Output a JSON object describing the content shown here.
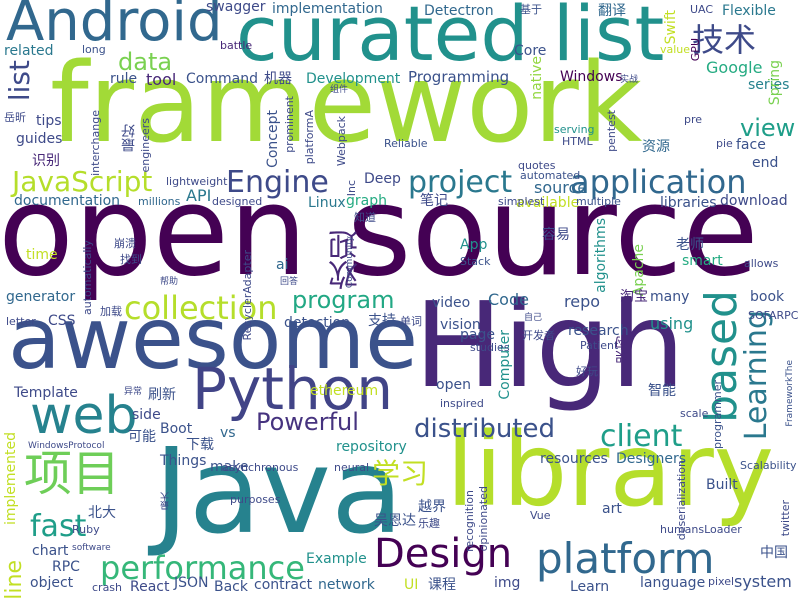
{
  "words": [
    {
      "text": "open source",
      "color": "#440154",
      "vertical": false
    },
    {
      "text": "framework",
      "color": "#a2da37",
      "vertical": false
    },
    {
      "text": "curated list",
      "color": "#21918c",
      "vertical": false
    },
    {
      "text": "Android",
      "color": "#31688e",
      "vertical": false
    },
    {
      "text": "awesome",
      "color": "#3b528b",
      "vertical": false
    },
    {
      "text": "High",
      "color": "#482878",
      "vertical": false
    },
    {
      "text": "Java",
      "color": "#26828e",
      "vertical": false
    },
    {
      "text": "library",
      "color": "#b5de2b",
      "vertical": false
    },
    {
      "text": "Python",
      "color": "#414487",
      "vertical": false
    },
    {
      "text": "web",
      "color": "#26828e",
      "vertical": false
    },
    {
      "text": "Design",
      "color": "#440154",
      "vertical": false
    },
    {
      "text": "platform",
      "color": "#31688e",
      "vertical": false
    },
    {
      "text": "performance",
      "color": "#35b779",
      "vertical": false
    },
    {
      "text": "项目",
      "color": "#6ece58",
      "vertical": false
    },
    {
      "text": "based",
      "color": "#21918c",
      "vertical": true
    },
    {
      "text": "application",
      "color": "#31688e",
      "vertical": false
    },
    {
      "text": "project",
      "color": "#2a788e",
      "vertical": false
    },
    {
      "text": "JavaScript",
      "color": "#b5de2b",
      "vertical": false
    },
    {
      "text": "Engine",
      "color": "#3e4a89",
      "vertical": false
    },
    {
      "text": "collection",
      "color": "#b5de2b",
      "vertical": false
    },
    {
      "text": "program",
      "color": "#22a884",
      "vertical": false
    },
    {
      "text": "client",
      "color": "#1f9e89",
      "vertical": false
    },
    {
      "text": "distributed",
      "color": "#3b528b",
      "vertical": false
    },
    {
      "text": "Powerful",
      "color": "#46337f",
      "vertical": false
    },
    {
      "text": "Learning",
      "color": "#2a788e",
      "vertical": true
    },
    {
      "text": "学习",
      "color": "#c2df23",
      "vertical": false
    },
    {
      "text": "fast",
      "color": "#1f9e89",
      "vertical": false
    },
    {
      "text": "技术",
      "color": "#3e4a89",
      "vertical": false
    },
    {
      "text": "欢迎",
      "color": "#482878",
      "vertical": true
    },
    {
      "text": "view",
      "color": "#1f9e89",
      "vertical": false
    },
    {
      "text": "data",
      "color": "#7ad151",
      "vertical": false
    },
    {
      "text": "list",
      "color": "#3e4a89",
      "vertical": true
    },
    {
      "text": "source",
      "color": "#31688e",
      "vertical": false
    },
    {
      "text": "Deep",
      "color": "#3e4a89",
      "vertical": false
    },
    {
      "text": "Programming",
      "color": "#3b528b",
      "vertical": false
    },
    {
      "text": "Command",
      "color": "#3b528b",
      "vertical": false
    },
    {
      "text": "机器",
      "color": "#3e4a89",
      "vertical": false
    },
    {
      "text": "Development",
      "color": "#21918c",
      "vertical": false
    },
    {
      "text": "Windows",
      "color": "#440154",
      "vertical": false
    },
    {
      "text": "Google",
      "color": "#25ab82",
      "vertical": false
    },
    {
      "text": "series",
      "color": "#26828e",
      "vertical": false
    },
    {
      "text": "Spring",
      "color": "#7ad151",
      "vertical": true
    },
    {
      "text": "tool",
      "color": "#482878",
      "vertical": false
    },
    {
      "text": "rule",
      "color": "#3b528b",
      "vertical": false
    },
    {
      "text": "Core",
      "color": "#3b528b",
      "vertical": false
    },
    {
      "text": "native",
      "color": "#93d741",
      "vertical": true
    },
    {
      "text": "Swift",
      "color": "#c2df23",
      "vertical": true
    },
    {
      "text": "Flexible",
      "color": "#2a788e",
      "vertical": false
    },
    {
      "text": "翻译",
      "color": "#31688e",
      "vertical": false
    },
    {
      "text": "UAC",
      "color": "#3e4a89",
      "vertical": false
    },
    {
      "text": "GPU",
      "color": "#440154",
      "vertical": true
    },
    {
      "text": "Detectron",
      "color": "#31688e",
      "vertical": false
    },
    {
      "text": "基于",
      "color": "#3b528b",
      "vertical": false
    },
    {
      "text": "implementation",
      "color": "#31688e",
      "vertical": false
    },
    {
      "text": "swagger",
      "color": "#3e4a89",
      "vertical": false
    },
    {
      "text": "battle",
      "color": "#482878",
      "vertical": false
    },
    {
      "text": "related",
      "color": "#2a788e",
      "vertical": false
    },
    {
      "text": "long",
      "color": "#3b528b",
      "vertical": false
    },
    {
      "text": "tips",
      "color": "#3e4a89",
      "vertical": false
    },
    {
      "text": "guides",
      "color": "#3e4a89",
      "vertical": false
    },
    {
      "text": "识别",
      "color": "#482878",
      "vertical": false
    },
    {
      "text": "最好",
      "color": "#3e4a89",
      "vertical": true
    },
    {
      "text": "documentation",
      "color": "#31688e",
      "vertical": false
    },
    {
      "text": "millions",
      "color": "#31688e",
      "vertical": false
    },
    {
      "text": "API",
      "color": "#2a788e",
      "vertical": false
    },
    {
      "text": "Linux",
      "color": "#2a788e",
      "vertical": false
    },
    {
      "text": "graph",
      "color": "#25ab82",
      "vertical": false
    },
    {
      "text": "available",
      "color": "#c2df23",
      "vertical": false
    },
    {
      "text": "multiple",
      "color": "#3b528b",
      "vertical": false
    },
    {
      "text": "libraries",
      "color": "#3b528b",
      "vertical": false
    },
    {
      "text": "download",
      "color": "#3e4a89",
      "vertical": false
    },
    {
      "text": "end",
      "color": "#3b528b",
      "vertical": false
    },
    {
      "text": "face",
      "color": "#3b528b",
      "vertical": false
    },
    {
      "text": "pie",
      "color": "#3e4a89",
      "vertical": false
    },
    {
      "text": "资源",
      "color": "#31688e",
      "vertical": false
    },
    {
      "text": "HTML",
      "color": "#3e4a89",
      "vertical": false
    },
    {
      "text": "serving",
      "color": "#21918c",
      "vertical": false
    },
    {
      "text": "quotes",
      "color": "#3e4a89",
      "vertical": false
    },
    {
      "text": "automated",
      "color": "#3b528b",
      "vertical": false
    },
    {
      "text": "simplest",
      "color": "#3e4a89",
      "vertical": false
    },
    {
      "text": "Reliable",
      "color": "#3b528b",
      "vertical": false
    },
    {
      "text": "笔记",
      "color": "#3e4a89",
      "vertical": false
    },
    {
      "text": "知道",
      "color": "#3e4a89",
      "vertical": false
    },
    {
      "text": "容易",
      "color": "#3e4a89",
      "vertical": false
    },
    {
      "text": "algorithms",
      "color": "#21918c",
      "vertical": true
    },
    {
      "text": "Apache",
      "color": "#7ad151",
      "vertical": true
    },
    {
      "text": "smart",
      "color": "#25ab82",
      "vertical": false
    },
    {
      "text": "allows",
      "color": "#3e4a89",
      "vertical": false
    },
    {
      "text": "老师",
      "color": "#3b528b",
      "vertical": false
    },
    {
      "text": "淘宝",
      "color": "#482878",
      "vertical": false
    },
    {
      "text": "many",
      "color": "#3b528b",
      "vertical": false
    },
    {
      "text": "book",
      "color": "#3b528b",
      "vertical": false
    },
    {
      "text": "SOFARPC",
      "color": "#3e4a89",
      "vertical": false
    },
    {
      "text": "App",
      "color": "#21918c",
      "vertical": false
    },
    {
      "text": "Stack",
      "color": "#3b528b",
      "vertical": false
    },
    {
      "text": "Code",
      "color": "#31688e",
      "vertical": false
    },
    {
      "text": "repo",
      "color": "#3b528b",
      "vertical": false
    },
    {
      "text": "video",
      "color": "#3b528b",
      "vertical": false
    },
    {
      "text": "vision",
      "color": "#3b528b",
      "vertical": false
    },
    {
      "text": "page",
      "color": "#3b528b",
      "vertical": false
    },
    {
      "text": "using",
      "color": "#21918c",
      "vertical": false
    },
    {
      "text": "research",
      "color": "#3b528b",
      "vertical": false
    },
    {
      "text": "开发者",
      "color": "#3e4a89",
      "vertical": false
    },
    {
      "text": "Patient",
      "color": "#3e4a89",
      "vertical": false
    },
    {
      "text": "架构",
      "color": "#482878",
      "vertical": true
    },
    {
      "text": "好玩",
      "color": "#3e4a89",
      "vertical": false
    },
    {
      "text": "智能",
      "color": "#3b528b",
      "vertical": false
    },
    {
      "text": "programmer",
      "color": "#3b528b",
      "vertical": true
    },
    {
      "text": "Scalability",
      "color": "#3b528b",
      "vertical": false
    },
    {
      "text": "scale",
      "color": "#3e4a89",
      "vertical": false
    },
    {
      "text": "FrameworkThe",
      "color": "#3b528b",
      "vertical": true
    },
    {
      "text": "detection",
      "color": "#3b528b",
      "vertical": false
    },
    {
      "text": "支持",
      "color": "#3b528b",
      "vertical": false
    },
    {
      "text": "单词",
      "color": "#3e4a89",
      "vertical": false
    },
    {
      "text": "generator",
      "color": "#31688e",
      "vertical": false
    },
    {
      "text": "letter",
      "color": "#3e4a89",
      "vertical": false
    },
    {
      "text": "CSS",
      "color": "#3e4a89",
      "vertical": false
    },
    {
      "text": "Template",
      "color": "#3e4a89",
      "vertical": false
    },
    {
      "text": "time",
      "color": "#c2df23",
      "vertical": false
    },
    {
      "text": "崩溃",
      "color": "#3e4a89",
      "vertical": false
    },
    {
      "text": "找到",
      "color": "#3e4a89",
      "vertical": false
    },
    {
      "text": "ai",
      "color": "#31688e",
      "vertical": false
    },
    {
      "text": "帮助",
      "color": "#3e4a89",
      "vertical": false
    },
    {
      "text": "回答",
      "color": "#3e4a89",
      "vertical": false
    },
    {
      "text": "加载",
      "color": "#3e4a89",
      "vertical": false
    },
    {
      "text": "刷新",
      "color": "#3b528b",
      "vertical": false
    },
    {
      "text": "异常",
      "color": "#3e4a89",
      "vertical": false
    },
    {
      "text": "side",
      "color": "#3e4a89",
      "vertical": false
    },
    {
      "text": "可能",
      "color": "#3b528b",
      "vertical": false
    },
    {
      "text": "Boot",
      "color": "#3b528b",
      "vertical": false
    },
    {
      "text": "vs",
      "color": "#31688e",
      "vertical": false
    },
    {
      "text": "下载",
      "color": "#3b528b",
      "vertical": false
    },
    {
      "text": "Things",
      "color": "#3b528b",
      "vertical": false
    },
    {
      "text": "make",
      "color": "#3b528b",
      "vertical": false
    },
    {
      "text": "asynchronous",
      "color": "#3e4a89",
      "vertical": false
    },
    {
      "text": "ethereum",
      "color": "#c2df23",
      "vertical": false
    },
    {
      "text": "repository",
      "color": "#21918c",
      "vertical": false
    },
    {
      "text": "neural",
      "color": "#3e4a89",
      "vertical": false
    },
    {
      "text": "open",
      "color": "#3b528b",
      "vertical": false
    },
    {
      "text": "inspired",
      "color": "#3e4a89",
      "vertical": false
    },
    {
      "text": "resources",
      "color": "#3b528b",
      "vertical": false
    },
    {
      "text": "Designers",
      "color": "#31688e",
      "vertical": false
    },
    {
      "text": "Built",
      "color": "#3b528b",
      "vertical": false
    },
    {
      "text": "art",
      "color": "#3b528b",
      "vertical": false
    },
    {
      "text": "Vue",
      "color": "#3e4a89",
      "vertical": false
    },
    {
      "text": "humansLoader",
      "color": "#3e4a89",
      "vertical": false
    },
    {
      "text": "中国",
      "color": "#3b528b",
      "vertical": false
    },
    {
      "text": "twitter",
      "color": "#3e4a89",
      "vertical": false
    },
    {
      "text": "language",
      "color": "#3b528b",
      "vertical": false
    },
    {
      "text": "pixel",
      "color": "#3e4a89",
      "vertical": false
    },
    {
      "text": "system",
      "color": "#3b528b",
      "vertical": false
    },
    {
      "text": "Learn",
      "color": "#3b528b",
      "vertical": false
    },
    {
      "text": "img",
      "color": "#3e4a89",
      "vertical": false
    },
    {
      "text": "课程",
      "color": "#3b528b",
      "vertical": false
    },
    {
      "text": "UI",
      "color": "#c2df23",
      "vertical": false
    },
    {
      "text": "network",
      "color": "#31688e",
      "vertical": false
    },
    {
      "text": "contract",
      "color": "#3b528b",
      "vertical": false
    },
    {
      "text": "Back",
      "color": "#3b528b",
      "vertical": false
    },
    {
      "text": "JSON",
      "color": "#3b528b",
      "vertical": false
    },
    {
      "text": "React",
      "color": "#3e4a89",
      "vertical": false
    },
    {
      "text": "crash",
      "color": "#3e4a89",
      "vertical": false
    },
    {
      "text": "object",
      "color": "#3b528b",
      "vertical": false
    },
    {
      "text": "RPC",
      "color": "#3b528b",
      "vertical": false
    },
    {
      "text": "chart",
      "color": "#3b528b",
      "vertical": false
    },
    {
      "text": "software",
      "color": "#3e4a89",
      "vertical": false
    },
    {
      "text": "Ruby",
      "color": "#3e4a89",
      "vertical": false
    },
    {
      "text": "北大",
      "color": "#3b528b",
      "vertical": false
    },
    {
      "text": "line",
      "color": "#c2df23",
      "vertical": true
    },
    {
      "text": "implemented",
      "color": "#c2df23",
      "vertical": true
    },
    {
      "text": "WindowsProtocol",
      "color": "#3e4a89",
      "vertical": false
    },
    {
      "text": "Example",
      "color": "#21918c",
      "vertical": false
    },
    {
      "text": "越界",
      "color": "#3b528b",
      "vertical": false
    },
    {
      "text": "乐趣",
      "color": "#3e4a89",
      "vertical": false
    },
    {
      "text": "吴恩达",
      "color": "#3b528b",
      "vertical": false
    },
    {
      "text": "recognition",
      "color": "#3e4a89",
      "vertical": true
    },
    {
      "text": "opinionated",
      "color": "#3e4a89",
      "vertical": true
    },
    {
      "text": "purposes",
      "color": "#3e4a89",
      "vertical": false
    },
    {
      "text": "最大",
      "color": "#3e4a89",
      "vertical": true
    },
    {
      "text": "deserialization",
      "color": "#3e4a89",
      "vertical": true
    },
    {
      "text": "Community",
      "color": "#3e4a89",
      "vertical": true
    },
    {
      "text": "Computer",
      "color": "#21918c",
      "vertical": true
    },
    {
      "text": "studies",
      "color": "#3e4a89",
      "vertical": false
    },
    {
      "text": "自己",
      "color": "#3e4a89",
      "vertical": false
    },
    {
      "text": "RecyclerAdapter",
      "color": "#3e4a89",
      "vertical": true
    },
    {
      "text": "automatically",
      "color": "#3e4a89",
      "vertical": true
    },
    {
      "text": "lightweight",
      "color": "#3e4a89",
      "vertical": false
    },
    {
      "text": "designed",
      "color": "#3e4a89",
      "vertical": false
    },
    {
      "text": "Inc",
      "color": "#3e4a89",
      "vertical": true
    },
    {
      "text": "Webpack",
      "color": "#3e4a89",
      "vertical": true
    },
    {
      "text": "platformA",
      "color": "#3e4a89",
      "vertical": true
    },
    {
      "text": "Concept",
      "color": "#3b528b",
      "vertical": true
    },
    {
      "text": "prominent",
      "color": "#3e4a89",
      "vertical": true
    },
    {
      "text": "interchange",
      "color": "#3e4a89",
      "vertical": true
    },
    {
      "text": "engineers",
      "color": "#3e4a89",
      "vertical": true
    },
    {
      "text": "岳昕",
      "color": "#3e4a89",
      "vertical": false
    },
    {
      "text": "组件",
      "color": "#3e4a89",
      "vertical": false
    },
    {
      "text": "实战",
      "color": "#3e4a89",
      "vertical": false
    },
    {
      "text": "value",
      "color": "#c2df23",
      "vertical": false
    },
    {
      "text": "pentest",
      "color": "#3e4a89",
      "vertical": true
    },
    {
      "text": "pre",
      "color": "#3e4a89",
      "vertical": false
    }
  ]
}
